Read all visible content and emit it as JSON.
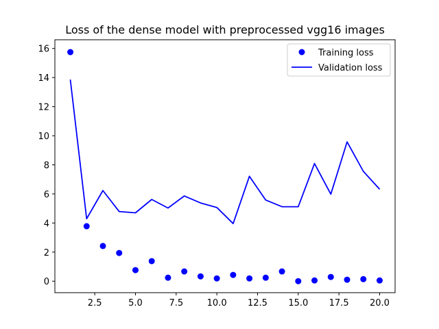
{
  "chart_data": {
    "type": "line",
    "title": "Loss of the dense model with preprocessed vgg16 images",
    "xlabel": "",
    "ylabel": "",
    "xlim": [
      0.05,
      20.95
    ],
    "ylim": [
      -0.79,
      16.6
    ],
    "x_ticks": [
      2.5,
      5.0,
      7.5,
      10.0,
      12.5,
      15.0,
      17.5,
      20.0
    ],
    "x_tick_labels": [
      "2.5",
      "5.0",
      "7.5",
      "10.0",
      "12.5",
      "15.0",
      "17.5",
      "20.0"
    ],
    "y_ticks": [
      0,
      2,
      4,
      6,
      8,
      10,
      12,
      14,
      16
    ],
    "y_tick_labels": [
      "0",
      "2",
      "4",
      "6",
      "8",
      "10",
      "12",
      "14",
      "16"
    ],
    "legend_position": "top-right",
    "series": [
      {
        "name": "Training loss",
        "style": "markers",
        "color": "#0000ff",
        "x": [
          1,
          2,
          3,
          4,
          5,
          6,
          7,
          8,
          9,
          10,
          11,
          12,
          13,
          14,
          15,
          16,
          17,
          18,
          19,
          20
        ],
        "values": [
          15.75,
          3.78,
          2.42,
          1.94,
          0.76,
          1.38,
          0.24,
          0.67,
          0.33,
          0.19,
          0.43,
          0.19,
          0.24,
          0.67,
          0.0,
          0.05,
          0.29,
          0.1,
          0.14,
          0.05
        ]
      },
      {
        "name": "Validation loss",
        "style": "line",
        "color": "#0000ff",
        "x": [
          1,
          2,
          3,
          4,
          5,
          6,
          7,
          8,
          9,
          10,
          11,
          12,
          13,
          14,
          15,
          16,
          17,
          18,
          19,
          20
        ],
        "values": [
          13.86,
          4.29,
          6.23,
          4.79,
          4.7,
          5.62,
          5.03,
          5.86,
          5.38,
          5.07,
          3.96,
          7.21,
          5.58,
          5.12,
          5.12,
          8.09,
          5.98,
          9.58,
          7.55,
          6.32
        ]
      }
    ]
  }
}
